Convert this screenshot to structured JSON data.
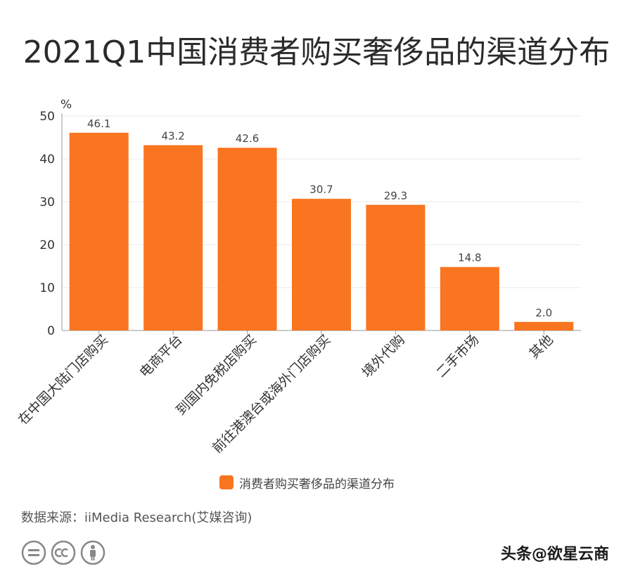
{
  "title": "2021Q1中国消费者购买奢侈品的渠道分布",
  "source": "数据来源：iiMedia Research(艾媒咨询)",
  "watermark": "头条@欲星云商",
  "colors": {
    "bar": "#f97520",
    "grid": "#e9e9e9",
    "axis": "#999999"
  },
  "chart_data": {
    "type": "bar",
    "title": "2021Q1中国消费者购买奢侈品的渠道分布",
    "ylabel": "%",
    "ylim": [
      0,
      50
    ],
    "yticks": [
      0,
      10,
      20,
      30,
      40,
      50
    ],
    "grid": true,
    "legend": "bottom",
    "categories": [
      "在中国大陆门店购买",
      "电商平台",
      "到国内免税店购买",
      "前往港澳台或海外门店购买",
      "境外代购",
      "二手市场",
      "其他"
    ],
    "series": [
      {
        "name": "消费者购买奢侈品的渠道分布",
        "values": [
          46.1,
          43.2,
          42.6,
          30.7,
          29.3,
          14.8,
          2.0
        ]
      }
    ]
  },
  "icons": [
    "equal-circle-icon",
    "cc-icon",
    "person-icon"
  ]
}
